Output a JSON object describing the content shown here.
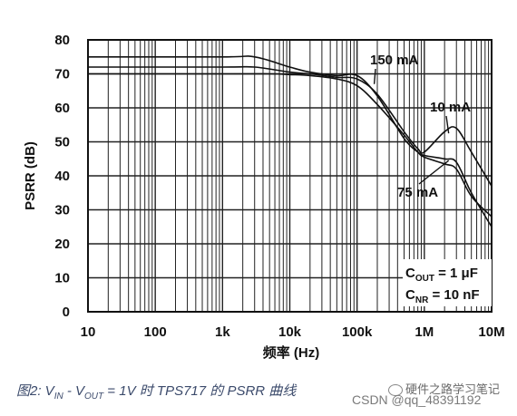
{
  "chart_data": {
    "type": "line",
    "title": "",
    "xlabel": "频率 (Hz)",
    "ylabel": "PSRR (dB)",
    "x_scale": "log",
    "xlim": [
      10,
      10000000
    ],
    "ylim": [
      0,
      80
    ],
    "grid": true,
    "x_ticks": [
      10,
      100,
      1000,
      10000,
      100000,
      1000000,
      10000000
    ],
    "x_tick_labels": [
      "10",
      "100",
      "1k",
      "10k",
      "100k",
      "1M",
      "10M"
    ],
    "y_ticks": [
      0,
      10,
      20,
      30,
      40,
      50,
      60,
      70,
      80
    ],
    "y_tick_labels": [
      "0",
      "10",
      "20",
      "30",
      "40",
      "50",
      "60",
      "70",
      "80"
    ],
    "series": [
      {
        "name": "150 mA",
        "x": [
          10,
          1000,
          5000,
          10000,
          20000,
          50000,
          100000,
          200000,
          500000,
          800000,
          1000000,
          2000000,
          3000000,
          5000000,
          10000000
        ],
        "y": [
          70,
          70,
          70,
          69.8,
          69.5,
          68.5,
          66.5,
          61,
          52,
          47,
          45.5,
          43.5,
          42,
          34,
          28
        ]
      },
      {
        "name": "10 mA",
        "x": [
          10,
          1000,
          3000,
          10000,
          20000,
          50000,
          100000,
          200000,
          500000,
          800000,
          1000000,
          2000000,
          3000000,
          5000000,
          10000000
        ],
        "y": [
          72,
          72,
          72,
          70.5,
          70,
          69,
          68.5,
          64,
          53,
          48,
          47,
          53,
          54,
          47,
          37
        ]
      },
      {
        "name": "75 mA",
        "x": [
          10,
          1000,
          3000,
          10000,
          20000,
          50000,
          100000,
          200000,
          500000,
          800000,
          1000000,
          2000000,
          3000000,
          5000000,
          10000000
        ],
        "y": [
          75,
          75,
          75,
          72,
          70.5,
          69.5,
          69.5,
          63.5,
          51,
          47,
          46,
          45,
          44,
          35,
          25
        ]
      }
    ],
    "annotations": [
      "150 mA",
      "10 mA",
      "75 mA"
    ],
    "conditions": {
      "line1": {
        "prefix": "C",
        "sub": "OUT",
        "suffix": " = 1 μF"
      },
      "line2": {
        "prefix": "C",
        "sub": "NR",
        "suffix": " = 10 nF"
      }
    }
  },
  "caption": {
    "prefix": "图2: V",
    "sub1": "IN",
    "mid1": " - V",
    "sub2": "OUT",
    "suffix": " = 1V 时 TPS717 的 PSRR 曲线"
  },
  "watermark_top": "硬件之路学习笔记",
  "watermark": "CSDN @qq_48391192"
}
